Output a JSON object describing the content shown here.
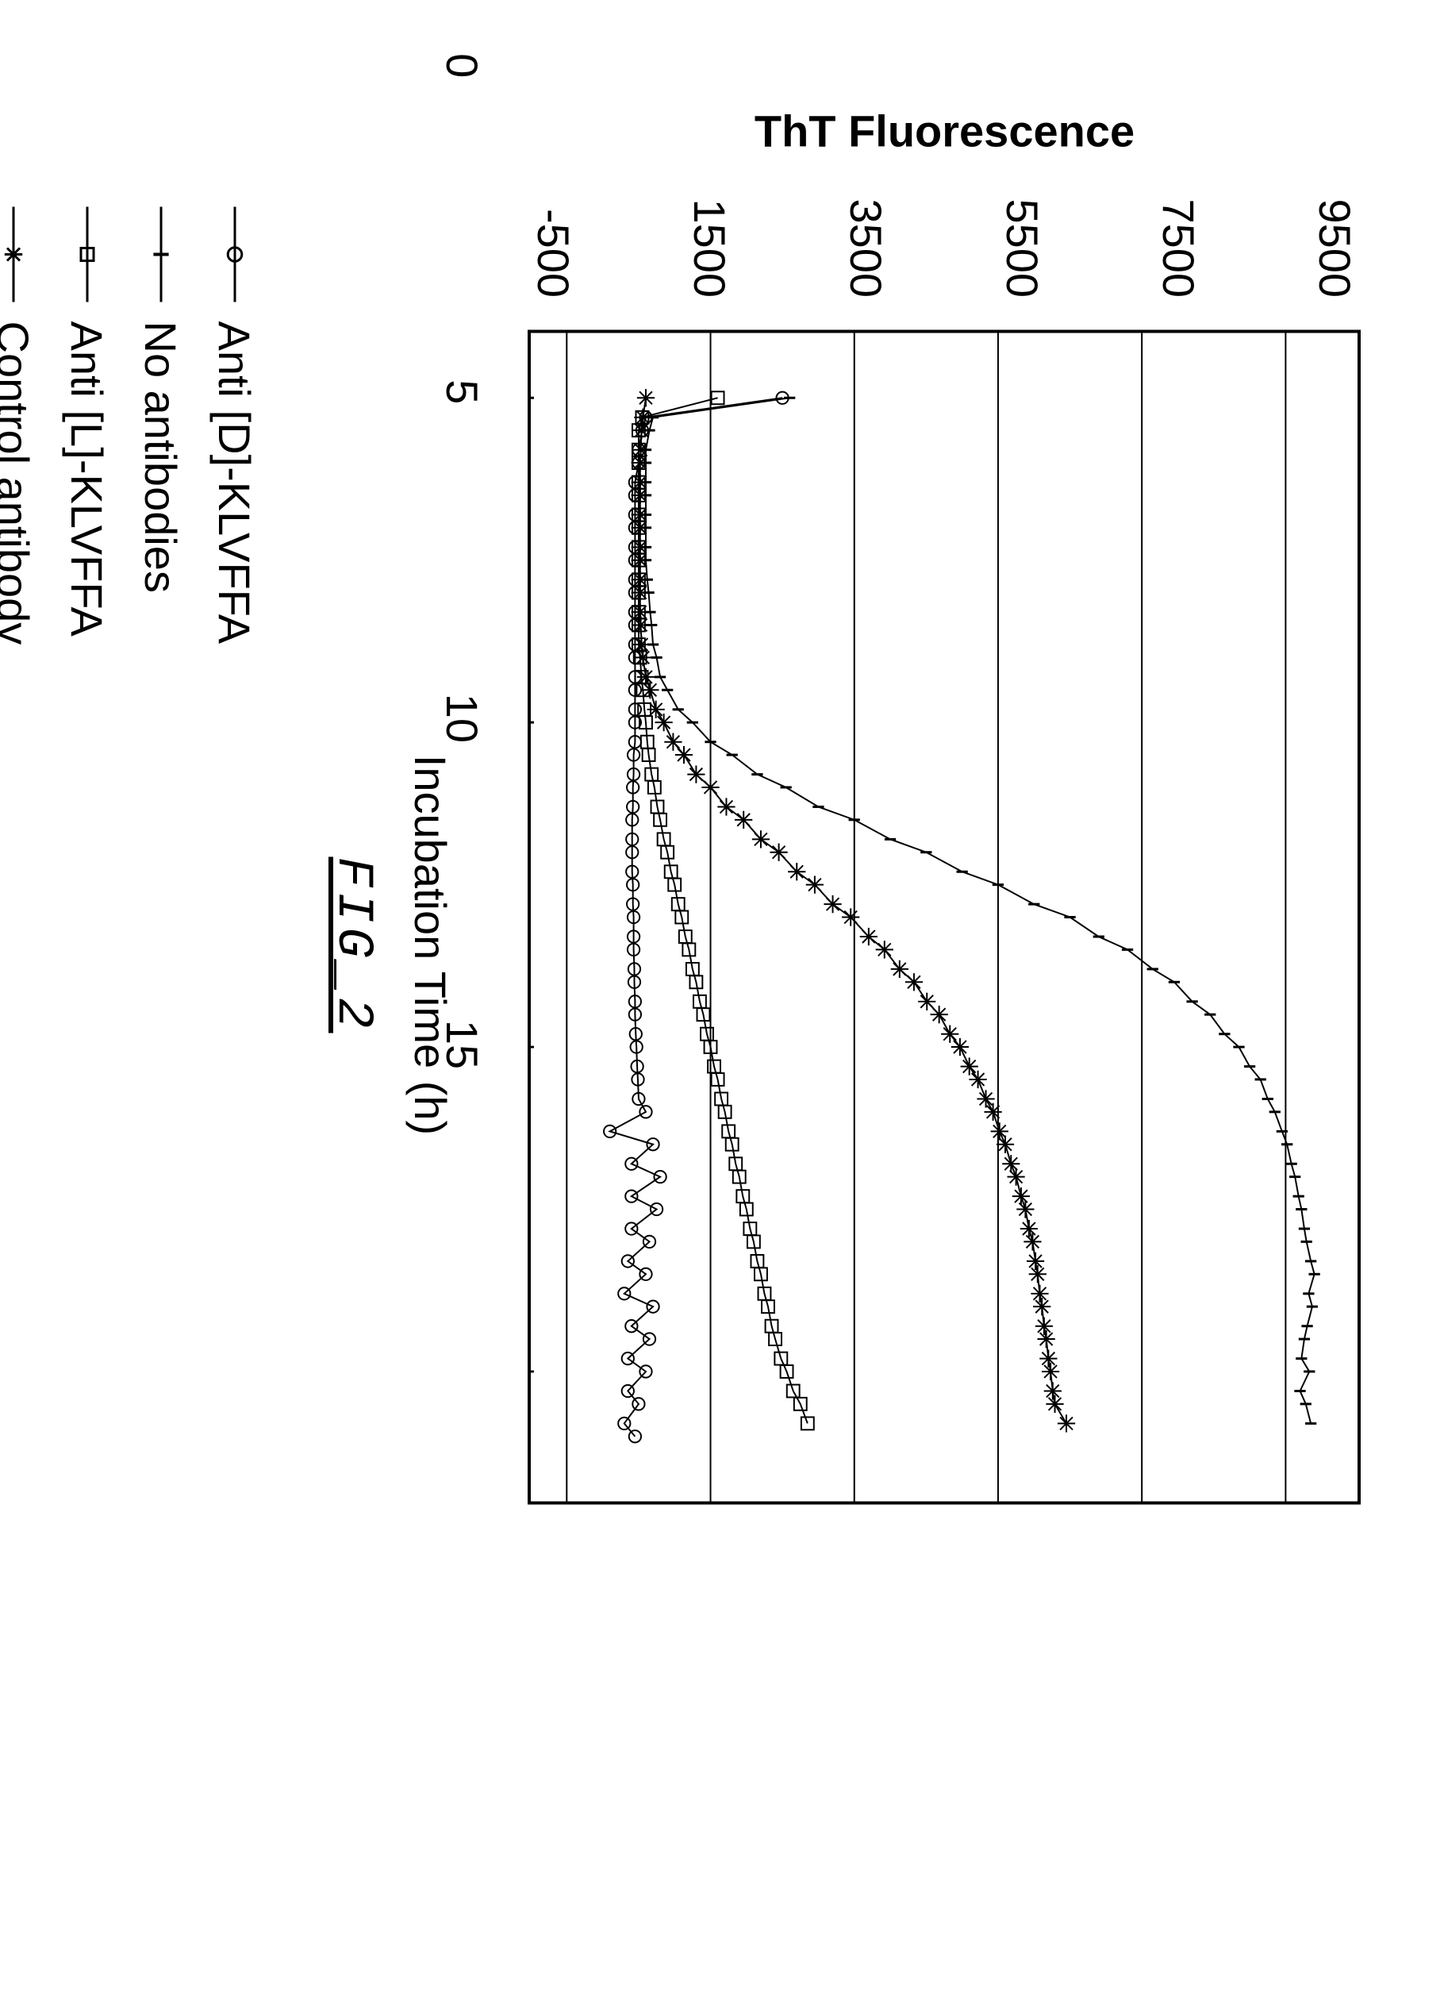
{
  "chart": {
    "type": "line",
    "xlabel": "Incubation Time (h)",
    "ylabel": "ThT Fluorescence",
    "caption": "FIG_2",
    "background_color": "#ffffff",
    "axis_color": "#000000",
    "grid_color": "#000000",
    "grid_linewidth": 2,
    "axis_linewidth": 4,
    "label_fontsize": 56,
    "tick_fontsize": 56,
    "caption_fontsize": 64,
    "xlim": [
      -1,
      17
    ],
    "ylim": [
      -1000,
      10500
    ],
    "xticks": [
      0,
      5,
      10,
      15
    ],
    "yticks": [
      -500,
      1500,
      3500,
      5500,
      7500,
      9500
    ],
    "series": [
      {
        "name": "Anti [D]-KLVFFA",
        "marker": "circle",
        "color": "#000000",
        "linewidth": 2,
        "marker_size": 14,
        "data": [
          [
            0.0,
            2500
          ],
          [
            0.3,
            600
          ],
          [
            0.5,
            550
          ],
          [
            0.8,
            500
          ],
          [
            1.0,
            500
          ],
          [
            1.3,
            450
          ],
          [
            1.5,
            450
          ],
          [
            1.8,
            450
          ],
          [
            2.0,
            450
          ],
          [
            2.3,
            450
          ],
          [
            2.5,
            450
          ],
          [
            2.8,
            450
          ],
          [
            3.0,
            450
          ],
          [
            3.3,
            450
          ],
          [
            3.5,
            450
          ],
          [
            3.8,
            450
          ],
          [
            4.0,
            450
          ],
          [
            4.3,
            450
          ],
          [
            4.5,
            450
          ],
          [
            4.8,
            450
          ],
          [
            5.0,
            450
          ],
          [
            5.3,
            450
          ],
          [
            5.5,
            430
          ],
          [
            5.8,
            430
          ],
          [
            6.0,
            420
          ],
          [
            6.3,
            420
          ],
          [
            6.5,
            410
          ],
          [
            6.8,
            410
          ],
          [
            7.0,
            410
          ],
          [
            7.3,
            410
          ],
          [
            7.5,
            420
          ],
          [
            7.8,
            420
          ],
          [
            8.0,
            430
          ],
          [
            8.3,
            430
          ],
          [
            8.5,
            430
          ],
          [
            8.8,
            440
          ],
          [
            9.0,
            440
          ],
          [
            9.3,
            450
          ],
          [
            9.5,
            450
          ],
          [
            9.8,
            460
          ],
          [
            10.0,
            470
          ],
          [
            10.3,
            480
          ],
          [
            10.5,
            490
          ],
          [
            10.8,
            500
          ],
          [
            11.0,
            600
          ],
          [
            11.3,
            100
          ],
          [
            11.5,
            700
          ],
          [
            11.8,
            400
          ],
          [
            12.0,
            800
          ],
          [
            12.3,
            400
          ],
          [
            12.5,
            750
          ],
          [
            12.8,
            400
          ],
          [
            13.0,
            650
          ],
          [
            13.3,
            350
          ],
          [
            13.5,
            600
          ],
          [
            13.8,
            300
          ],
          [
            14.0,
            700
          ],
          [
            14.3,
            400
          ],
          [
            14.5,
            650
          ],
          [
            14.8,
            350
          ],
          [
            15.0,
            600
          ],
          [
            15.3,
            350
          ],
          [
            15.5,
            500
          ],
          [
            15.8,
            300
          ],
          [
            16.0,
            450
          ]
        ]
      },
      {
        "name": "No antibodies",
        "marker": "tick",
        "color": "#000000",
        "linewidth": 2,
        "marker_size": 12,
        "data": [
          [
            0.0,
            2600
          ],
          [
            0.3,
            700
          ],
          [
            0.5,
            650
          ],
          [
            0.8,
            600
          ],
          [
            1.0,
            600
          ],
          [
            1.3,
            600
          ],
          [
            1.5,
            600
          ],
          [
            1.8,
            600
          ],
          [
            2.0,
            600
          ],
          [
            2.3,
            600
          ],
          [
            2.5,
            600
          ],
          [
            2.8,
            620
          ],
          [
            3.0,
            640
          ],
          [
            3.3,
            660
          ],
          [
            3.5,
            680
          ],
          [
            3.8,
            700
          ],
          [
            4.0,
            750
          ],
          [
            4.3,
            800
          ],
          [
            4.5,
            900
          ],
          [
            4.8,
            1050
          ],
          [
            5.0,
            1250
          ],
          [
            5.3,
            1500
          ],
          [
            5.5,
            1800
          ],
          [
            5.8,
            2150
          ],
          [
            6.0,
            2550
          ],
          [
            6.3,
            3000
          ],
          [
            6.5,
            3500
          ],
          [
            6.8,
            4000
          ],
          [
            7.0,
            4500
          ],
          [
            7.3,
            5000
          ],
          [
            7.5,
            5500
          ],
          [
            7.8,
            6000
          ],
          [
            8.0,
            6500
          ],
          [
            8.3,
            6900
          ],
          [
            8.5,
            7300
          ],
          [
            8.8,
            7650
          ],
          [
            9.0,
            7950
          ],
          [
            9.3,
            8200
          ],
          [
            9.5,
            8450
          ],
          [
            9.8,
            8650
          ],
          [
            10.0,
            8850
          ],
          [
            10.3,
            9000
          ],
          [
            10.5,
            9150
          ],
          [
            10.8,
            9250
          ],
          [
            11.0,
            9350
          ],
          [
            11.3,
            9450
          ],
          [
            11.5,
            9520
          ],
          [
            11.8,
            9580
          ],
          [
            12.0,
            9630
          ],
          [
            12.3,
            9680
          ],
          [
            12.5,
            9720
          ],
          [
            12.8,
            9760
          ],
          [
            13.0,
            9790
          ],
          [
            13.3,
            9850
          ],
          [
            13.5,
            9900
          ],
          [
            13.8,
            9820
          ],
          [
            14.0,
            9870
          ],
          [
            14.3,
            9800
          ],
          [
            14.5,
            9760
          ],
          [
            14.8,
            9720
          ],
          [
            15.0,
            9830
          ],
          [
            15.3,
            9700
          ],
          [
            15.5,
            9780
          ],
          [
            15.8,
            9850
          ]
        ]
      },
      {
        "name": "Anti [L]-KLVFFA",
        "marker": "square",
        "color": "#000000",
        "linewidth": 2,
        "marker_size": 16,
        "data": [
          [
            0.0,
            1600
          ],
          [
            0.3,
            550
          ],
          [
            0.5,
            500
          ],
          [
            0.8,
            500
          ],
          [
            1.0,
            500
          ],
          [
            1.3,
            500
          ],
          [
            1.5,
            500
          ],
          [
            1.8,
            500
          ],
          [
            2.0,
            500
          ],
          [
            2.3,
            500
          ],
          [
            2.5,
            500
          ],
          [
            2.8,
            500
          ],
          [
            3.0,
            500
          ],
          [
            3.3,
            500
          ],
          [
            3.5,
            500
          ],
          [
            3.8,
            500
          ],
          [
            4.0,
            520
          ],
          [
            4.3,
            540
          ],
          [
            4.5,
            560
          ],
          [
            4.8,
            580
          ],
          [
            5.0,
            600
          ],
          [
            5.3,
            620
          ],
          [
            5.5,
            640
          ],
          [
            5.8,
            680
          ],
          [
            6.0,
            720
          ],
          [
            6.3,
            760
          ],
          [
            6.5,
            800
          ],
          [
            6.8,
            850
          ],
          [
            7.0,
            900
          ],
          [
            7.3,
            950
          ],
          [
            7.5,
            1000
          ],
          [
            7.8,
            1050
          ],
          [
            8.0,
            1100
          ],
          [
            8.3,
            1150
          ],
          [
            8.5,
            1200
          ],
          [
            8.8,
            1250
          ],
          [
            9.0,
            1300
          ],
          [
            9.3,
            1350
          ],
          [
            9.5,
            1400
          ],
          [
            9.8,
            1450
          ],
          [
            10.0,
            1500
          ],
          [
            10.3,
            1550
          ],
          [
            10.5,
            1600
          ],
          [
            10.8,
            1650
          ],
          [
            11.0,
            1700
          ],
          [
            11.3,
            1750
          ],
          [
            11.5,
            1800
          ],
          [
            11.8,
            1850
          ],
          [
            12.0,
            1900
          ],
          [
            12.3,
            1950
          ],
          [
            12.5,
            2000
          ],
          [
            12.8,
            2050
          ],
          [
            13.0,
            2100
          ],
          [
            13.3,
            2150
          ],
          [
            13.5,
            2200
          ],
          [
            13.8,
            2250
          ],
          [
            14.0,
            2300
          ],
          [
            14.3,
            2350
          ],
          [
            14.5,
            2400
          ],
          [
            14.8,
            2480
          ],
          [
            15.0,
            2560
          ],
          [
            15.3,
            2650
          ],
          [
            15.5,
            2750
          ],
          [
            15.8,
            2850
          ]
        ]
      },
      {
        "name": "Control antibody",
        "marker": "asterisk",
        "color": "#000000",
        "linewidth": 2,
        "marker_size": 16,
        "data": [
          [
            0.0,
            600
          ],
          [
            0.3,
            560
          ],
          [
            0.5,
            540
          ],
          [
            0.8,
            530
          ],
          [
            1.0,
            520
          ],
          [
            1.3,
            520
          ],
          [
            1.5,
            520
          ],
          [
            1.8,
            520
          ],
          [
            2.0,
            520
          ],
          [
            2.3,
            520
          ],
          [
            2.5,
            520
          ],
          [
            2.8,
            520
          ],
          [
            3.0,
            520
          ],
          [
            3.3,
            520
          ],
          [
            3.5,
            530
          ],
          [
            3.8,
            540
          ],
          [
            4.0,
            560
          ],
          [
            4.3,
            600
          ],
          [
            4.5,
            660
          ],
          [
            4.8,
            740
          ],
          [
            5.0,
            850
          ],
          [
            5.3,
            980
          ],
          [
            5.5,
            1130
          ],
          [
            5.8,
            1300
          ],
          [
            6.0,
            1500
          ],
          [
            6.3,
            1720
          ],
          [
            6.5,
            1960
          ],
          [
            6.8,
            2200
          ],
          [
            7.0,
            2450
          ],
          [
            7.3,
            2700
          ],
          [
            7.5,
            2950
          ],
          [
            7.8,
            3200
          ],
          [
            8.0,
            3450
          ],
          [
            8.3,
            3700
          ],
          [
            8.5,
            3920
          ],
          [
            8.8,
            4130
          ],
          [
            9.0,
            4330
          ],
          [
            9.3,
            4510
          ],
          [
            9.5,
            4680
          ],
          [
            9.8,
            4830
          ],
          [
            10.0,
            4970
          ],
          [
            10.3,
            5100
          ],
          [
            10.5,
            5220
          ],
          [
            10.8,
            5330
          ],
          [
            11.0,
            5430
          ],
          [
            11.3,
            5520
          ],
          [
            11.5,
            5600
          ],
          [
            11.8,
            5680
          ],
          [
            12.0,
            5750
          ],
          [
            12.3,
            5820
          ],
          [
            12.5,
            5880
          ],
          [
            12.8,
            5930
          ],
          [
            13.0,
            5980
          ],
          [
            13.3,
            6020
          ],
          [
            13.5,
            6050
          ],
          [
            13.8,
            6080
          ],
          [
            14.0,
            6110
          ],
          [
            14.3,
            6140
          ],
          [
            14.5,
            6170
          ],
          [
            14.8,
            6200
          ],
          [
            15.0,
            6230
          ],
          [
            15.3,
            6260
          ],
          [
            15.5,
            6290
          ],
          [
            15.8,
            6450
          ]
        ]
      }
    ]
  },
  "legend": {
    "fontsize": 56,
    "items": [
      {
        "label": "Anti [D]-KLVFFA",
        "marker": "circle"
      },
      {
        "label": "No antibodies",
        "marker": "tick"
      },
      {
        "label": "Anti [L]-KLVFFA",
        "marker": "square"
      },
      {
        "label": "Control antibody",
        "marker": "asterisk"
      }
    ]
  }
}
